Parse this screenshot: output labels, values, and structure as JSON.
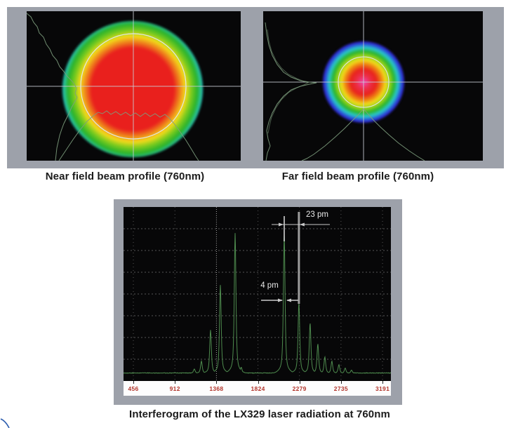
{
  "figure": {
    "near_field_caption": "Near field beam profile (760nm)",
    "far_field_caption": "Far field beam profile (760nm)",
    "interferogram_caption": "Interferogram of the LX329 laser radiation at 760nm"
  },
  "interferogram": {
    "annotations": {
      "spacing_label": "23 pm",
      "width_label": "4 pm"
    }
  },
  "chart_data": {
    "type": "line",
    "title": "Interferogram of the LX329 laser radiation at 760nm",
    "xlabel": "",
    "ylabel": "",
    "x_tick_labels": [
      "456",
      "912",
      "1368",
      "1824",
      "2279",
      "2735",
      "3191"
    ],
    "x_ticks": [
      456,
      912,
      1368,
      1824,
      2279,
      2735,
      3191
    ],
    "x_range": [
      348,
      3283
    ],
    "y_range_fraction": [
      0,
      1
    ],
    "grid": true,
    "legend": "none",
    "peaks": [
      {
        "x": 1125,
        "h": 0.025
      },
      {
        "x": 1203,
        "h": 0.07
      },
      {
        "x": 1303,
        "h": 0.25
      },
      {
        "x": 1411,
        "h": 0.51
      },
      {
        "x": 1573,
        "h": 0.81
      },
      {
        "x": 1640,
        "h": 0.035
      },
      {
        "x": 2112,
        "h": 0.8
      },
      {
        "x": 2273,
        "h": 0.41
      },
      {
        "x": 2396,
        "h": 0.29
      },
      {
        "x": 2481,
        "h": 0.17
      },
      {
        "x": 2558,
        "h": 0.095
      },
      {
        "x": 2635,
        "h": 0.07
      },
      {
        "x": 2712,
        "h": 0.05
      },
      {
        "x": 2781,
        "h": 0.03
      },
      {
        "x": 2850,
        "h": 0.018
      }
    ],
    "annotations": [
      {
        "label": "23 pm",
        "value": 23,
        "unit": "pm",
        "between_x": [
          2112,
          2273
        ]
      },
      {
        "label": "4 pm",
        "value": 4,
        "unit": "pm",
        "peak_x": 2112
      }
    ]
  },
  "colors": {
    "mat": "#9da1aa",
    "screen": "#070708",
    "axis_strip": "#fdfdfd",
    "tick_label": "#b2342a",
    "grid": "#6a6a6a",
    "grid_bright": "#b5b5b5",
    "trace": "#4e8b4e",
    "profile_curve": "#7d9d7d",
    "crosshair": "#c9ced8",
    "beam_circle": "#dfe8f2",
    "annotation_line": "#c9c9c9",
    "annotation_text": "#e8e8e8",
    "marker_white": "#ffffff",
    "marker_gray": "#9c9c9c",
    "caption": "#1b1b1b",
    "corner_mark": "#3060b0",
    "near_beam_gradient": "radial-gradient(circle, #e9201d 0%, #e9201d 42%, #f3db1b 54%, #7ccb1e 60%, #2bb32b 66%, #27c8cf 72%, #2d2ed6 78%, #3b1486 86%, #150829 93%, rgba(10,6,20,0) 99%)",
    "far_beam_gradient": "radial-gradient(circle, #f046b4 0%, #ec2e48 12%, #e8231c 22%, #ef8c12 32%, #f2dc1b 38%, #86cf1d 47%, #2bb32b 53%, #28c9d0 60%, #2d2ed6 68%, #3a1487 80%, #150829 90%, rgba(10,6,20,0) 100%)"
  }
}
